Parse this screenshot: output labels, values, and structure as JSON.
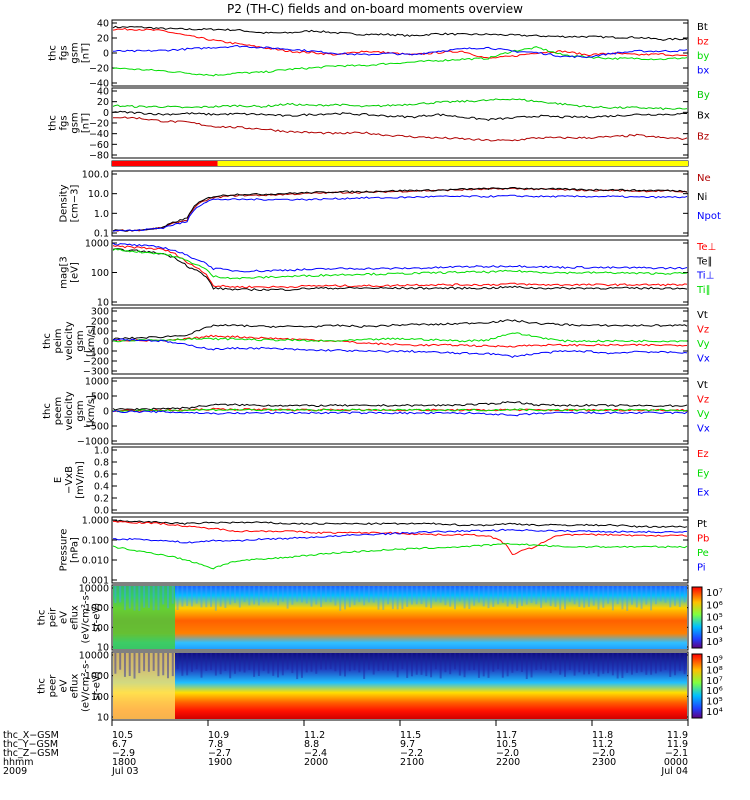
{
  "title": "P2 (TH-C) fields and on-board moments overview",
  "colors": {
    "black": "#000000",
    "red": "#ff0000",
    "green": "#00dd00",
    "blue": "#0000ff",
    "darkred": "#b00000",
    "yellow": "#ffff00",
    "greenlbl": "#00cc00"
  },
  "chart_data": [
    {
      "type": "line",
      "ylabel": [
        "thc",
        "fgs",
        "gsm",
        "[nT]"
      ],
      "yticks": [
        "40",
        "20",
        "0",
        "−20",
        "−40"
      ],
      "ylim": [
        -40,
        45
      ],
      "series": [
        {
          "name": "Bt",
          "color": "black",
          "values": [
            38,
            38,
            36,
            35,
            35,
            34,
            30,
            30,
            33,
            30,
            28,
            28,
            26,
            29,
            28,
            28,
            27,
            26,
            25,
            25,
            24,
            24,
            21,
            22
          ]
        },
        {
          "name": "bz",
          "color": "red",
          "values": [
            35,
            35,
            33,
            26,
            20,
            15,
            10,
            5,
            3,
            0,
            5,
            3,
            0,
            3,
            5,
            -5,
            -2,
            3,
            5,
            0,
            2,
            0,
            1,
            -2
          ]
        },
        {
          "name": "by",
          "color": "green",
          "values": [
            -18,
            -20,
            -22,
            -25,
            -28,
            -25,
            -24,
            -20,
            -18,
            -15,
            -15,
            -12,
            -10,
            -8,
            -6,
            -5,
            5,
            10,
            0,
            -3,
            -5,
            -5,
            -6,
            -4
          ]
        },
        {
          "name": "bx",
          "color": "blue",
          "values": [
            5,
            5,
            6,
            8,
            10,
            12,
            10,
            8,
            5,
            2,
            0,
            2,
            0,
            5,
            8,
            10,
            5,
            3,
            -2,
            -3,
            2,
            5,
            5,
            6
          ]
        }
      ]
    },
    {
      "type": "line",
      "ylabel": [
        "thc",
        "fgs",
        "gsm",
        "[nT]"
      ],
      "yticks": [
        "40",
        "20",
        "0",
        "−20",
        "−40",
        "−60",
        "−80"
      ],
      "ylim": [
        -85,
        42
      ],
      "series": [
        {
          "name": "By",
          "color": "greenlbl",
          "values": [
            12,
            10,
            10,
            8,
            10,
            12,
            10,
            15,
            12,
            14,
            10,
            12,
            15,
            18,
            20,
            22,
            25,
            20,
            15,
            10,
            8,
            8,
            6,
            5
          ]
        },
        {
          "name": "Bx",
          "color": "black",
          "values": [
            0,
            -2,
            -5,
            -3,
            -5,
            -4,
            -5,
            -8,
            -5,
            -3,
            -5,
            -8,
            -10,
            -5,
            -10,
            -15,
            -12,
            -8,
            -10,
            -10,
            -8,
            -5,
            -5,
            -4
          ]
        },
        {
          "name": "Bz",
          "color": "darkred",
          "values": [
            -10,
            -12,
            -18,
            -20,
            -28,
            -30,
            -33,
            -38,
            -40,
            -42,
            -40,
            -45,
            -48,
            -50,
            -52,
            -55,
            -55,
            -50,
            -50,
            -50,
            -48,
            -45,
            -50,
            -52
          ]
        }
      ]
    },
    {
      "type": "bar-indicator",
      "colors": [
        "red",
        "yellow"
      ],
      "split_hour": 19.1
    },
    {
      "type": "line",
      "yscale": "log",
      "ylabel": [
        "Density",
        "[cm−3]"
      ],
      "yticks": [
        "100.0",
        "10.0",
        "1.0",
        "0.1"
      ],
      "ylim": [
        0.1,
        100
      ],
      "series": [
        {
          "name": "Ne",
          "color": "darkred",
          "values": [
            0.15,
            0.15,
            0.2,
            0.5,
            6,
            8,
            8,
            9,
            10,
            11,
            11,
            12,
            13,
            14,
            15,
            16,
            17,
            16,
            15,
            14,
            14,
            13,
            13,
            12
          ]
        },
        {
          "name": "Ni",
          "color": "black",
          "values": [
            0.15,
            0.15,
            0.2,
            0.6,
            7,
            9,
            9,
            10,
            11,
            12,
            12,
            13,
            14,
            14,
            16,
            17,
            18,
            17,
            16,
            15,
            15,
            14,
            14,
            13
          ]
        },
        {
          "name": "Npot",
          "color": "blue",
          "values": [
            0.15,
            0.15,
            0.2,
            0.4,
            5,
            5,
            5,
            5,
            5,
            5.5,
            6,
            6,
            6.5,
            7,
            7,
            7,
            7.5,
            7,
            7,
            7,
            7,
            6.5,
            6.5,
            6.5
          ]
        }
      ]
    },
    {
      "type": "line",
      "yscale": "log",
      "ylabel": [
        "mag[3",
        "[eV]"
      ],
      "yticks": [
        "1000",
        "100",
        "10"
      ],
      "ylim": [
        10,
        3000
      ],
      "series": [
        {
          "name": "Te⊥",
          "color": "red",
          "values": [
            2000,
            1800,
            1500,
            400,
            50,
            45,
            45,
            45,
            50,
            50,
            50,
            50,
            55,
            55,
            55,
            55,
            60,
            55,
            55,
            55,
            55,
            55,
            55,
            55
          ]
        },
        {
          "name": "Te∥",
          "color": "black",
          "values": [
            1500,
            1300,
            1000,
            300,
            40,
            35,
            35,
            35,
            40,
            40,
            40,
            40,
            40,
            40,
            40,
            40,
            45,
            40,
            40,
            40,
            40,
            40,
            40,
            40
          ]
        },
        {
          "name": "Ti⊥",
          "color": "blue",
          "values": [
            2500,
            2200,
            1800,
            800,
            250,
            200,
            200,
            220,
            230,
            250,
            250,
            250,
            260,
            270,
            300,
            300,
            320,
            300,
            280,
            280,
            270,
            270,
            260,
            260
          ]
        },
        {
          "name": "Ti∥",
          "color": "green",
          "values": [
            1500,
            1200,
            1000,
            500,
            120,
            100,
            110,
            120,
            130,
            140,
            150,
            150,
            160,
            170,
            180,
            180,
            200,
            180,
            170,
            170,
            170,
            160,
            160,
            160
          ]
        }
      ]
    },
    {
      "type": "line",
      "ylabel": [
        "thc",
        "peim",
        "velocity",
        "gsm",
        "[km/s]"
      ],
      "yticks": [
        "300",
        "200",
        "100",
        "0",
        "−100",
        "−200",
        "−300"
      ],
      "ylim": [
        -300,
        300
      ],
      "series": [
        {
          "name": "Vt",
          "color": "black",
          "values": [
            20,
            30,
            40,
            60,
            150,
            150,
            140,
            140,
            140,
            150,
            140,
            150,
            160,
            160,
            170,
            180,
            200,
            170,
            160,
            150,
            150,
            150,
            150,
            150
          ]
        },
        {
          "name": "Vz",
          "color": "red",
          "values": [
            10,
            5,
            0,
            20,
            50,
            40,
            30,
            20,
            10,
            0,
            -20,
            -30,
            -40,
            -40,
            -40,
            -50,
            -50,
            -40,
            -40,
            -40,
            -40,
            -40,
            -40,
            -40
          ]
        },
        {
          "name": "Vy",
          "color": "green",
          "values": [
            0,
            10,
            10,
            20,
            20,
            20,
            10,
            10,
            0,
            0,
            10,
            20,
            20,
            10,
            0,
            10,
            80,
            40,
            0,
            0,
            0,
            0,
            0,
            0
          ]
        },
        {
          "name": "Vx",
          "color": "blue",
          "values": [
            20,
            10,
            0,
            -40,
            -80,
            -70,
            -70,
            -80,
            -90,
            -90,
            -100,
            -100,
            -100,
            -110,
            -120,
            -120,
            -150,
            -120,
            -100,
            -100,
            -120,
            -100,
            -110,
            -110
          ]
        }
      ]
    },
    {
      "type": "line",
      "ylabel": [
        "thc",
        "peem",
        "velocity",
        "gsm",
        "[km/s]"
      ],
      "yticks": [
        "1000",
        "500",
        "0",
        "−500",
        "−1000"
      ],
      "ylim": [
        -1000,
        1000
      ],
      "series": [
        {
          "name": "Vt",
          "color": "black",
          "values": [
            50,
            60,
            80,
            100,
            200,
            200,
            180,
            180,
            170,
            180,
            170,
            180,
            180,
            180,
            200,
            220,
            300,
            200,
            180,
            180,
            180,
            170,
            170,
            170
          ]
        },
        {
          "name": "Vz",
          "color": "red",
          "values": [
            10,
            10,
            20,
            30,
            60,
            50,
            50,
            40,
            40,
            40,
            30,
            30,
            30,
            30,
            30,
            30,
            40,
            30,
            30,
            30,
            30,
            30,
            30,
            30
          ]
        },
        {
          "name": "Vy",
          "color": "green",
          "values": [
            0,
            10,
            20,
            30,
            40,
            40,
            30,
            30,
            30,
            30,
            30,
            30,
            30,
            30,
            30,
            30,
            50,
            30,
            30,
            30,
            30,
            30,
            30,
            30
          ]
        },
        {
          "name": "Vx",
          "color": "blue",
          "values": [
            -20,
            -20,
            -30,
            -50,
            -80,
            -70,
            -60,
            -60,
            -60,
            -60,
            -60,
            -60,
            -70,
            -70,
            -70,
            -80,
            -150,
            -80,
            -60,
            -60,
            -60,
            -60,
            -60,
            -60
          ]
        }
      ]
    },
    {
      "type": "line",
      "ylabel": [
        "E",
        "−VxB",
        "[mV/m]"
      ],
      "yticks": [
        "1.0",
        "0.8",
        "0.6",
        "0.4",
        "0.2",
        "0.0"
      ],
      "ylim": [
        0,
        1
      ],
      "series": [
        {
          "name": "Ez",
          "color": "red",
          "values": []
        },
        {
          "name": "Ey",
          "color": "green",
          "values": []
        },
        {
          "name": "Ex",
          "color": "blue",
          "values": []
        }
      ]
    },
    {
      "type": "line",
      "yscale": "log",
      "ylabel": [
        "Pressure",
        "[nPa]"
      ],
      "yticks": [
        "1.000",
        "0.100",
        "0.010",
        "0.001"
      ],
      "ylim": [
        0.001,
        1.2
      ],
      "series": [
        {
          "name": "Pt",
          "color": "black",
          "values": [
            1.0,
            0.9,
            0.8,
            0.7,
            0.8,
            0.8,
            0.8,
            0.7,
            0.7,
            0.7,
            0.7,
            0.7,
            0.7,
            0.7,
            0.6,
            0.6,
            0.7,
            0.6,
            0.6,
            0.6,
            0.6,
            0.5,
            0.5,
            0.5
          ]
        },
        {
          "name": "Pb",
          "color": "red",
          "values": [
            0.9,
            0.8,
            0.7,
            0.5,
            0.4,
            0.3,
            0.3,
            0.3,
            0.25,
            0.25,
            0.25,
            0.25,
            0.22,
            0.2,
            0.2,
            0.18,
            0.02,
            0.05,
            0.2,
            0.2,
            0.2,
            0.18,
            0.18,
            0.18
          ]
        },
        {
          "name": "Pe",
          "color": "green",
          "values": [
            0.05,
            0.03,
            0.02,
            0.01,
            0.004,
            0.01,
            0.012,
            0.015,
            0.02,
            0.025,
            0.03,
            0.035,
            0.04,
            0.045,
            0.05,
            0.06,
            0.07,
            0.06,
            0.05,
            0.05,
            0.05,
            0.05,
            0.05,
            0.05
          ]
        },
        {
          "name": "Pi",
          "color": "blue",
          "values": [
            0.12,
            0.12,
            0.1,
            0.08,
            0.1,
            0.1,
            0.12,
            0.13,
            0.15,
            0.17,
            0.2,
            0.22,
            0.25,
            0.28,
            0.3,
            0.32,
            0.35,
            0.32,
            0.3,
            0.3,
            0.28,
            0.28,
            0.27,
            0.27
          ]
        }
      ]
    },
    {
      "type": "heatmap",
      "ylabel": [
        "thc",
        "peir",
        "eV",
        "eflux",
        "(eV/cm²-s-",
        "sr-eV)"
      ],
      "yticks": [
        "10000",
        "1000",
        "100",
        "10"
      ],
      "colorbar_ticks": [
        "10⁷",
        "10⁶",
        "10⁵",
        "10⁴",
        "10³"
      ]
    },
    {
      "type": "heatmap",
      "ylabel": [
        "thc",
        "peer",
        "eV",
        "eflux",
        "(eV/cm²-s-",
        "sr-eV)"
      ],
      "yticks": [
        "10000",
        "1000",
        "100",
        "10"
      ],
      "colorbar_ticks": [
        "10⁹",
        "10⁸",
        "10⁷",
        "10⁶",
        "10⁵",
        "10⁴"
      ]
    }
  ],
  "xaxis": {
    "row_labels": [
      "thc_X−GSM",
      "thc_Y−GSM",
      "thc_Z−GSM",
      "hhmm",
      "2009"
    ],
    "columns": [
      {
        "vals": [
          "10.5",
          "6.7",
          "−2.9",
          "1800",
          "Jul 03"
        ]
      },
      {
        "vals": [
          "10.9",
          "7.8",
          "−2.7",
          "1900",
          ""
        ]
      },
      {
        "vals": [
          "11.2",
          "8.8",
          "−2.4",
          "2000",
          ""
        ]
      },
      {
        "vals": [
          "11.5",
          "9.7",
          "−2.2",
          "2100",
          ""
        ]
      },
      {
        "vals": [
          "11.7",
          "10.5",
          "−2.0",
          "2200",
          ""
        ]
      },
      {
        "vals": [
          "11.8",
          "11.2",
          "−2.0",
          "2300",
          ""
        ]
      },
      {
        "vals": [
          "11.9",
          "11.9",
          "−2.1",
          "0000",
          "Jul 04"
        ]
      }
    ]
  }
}
